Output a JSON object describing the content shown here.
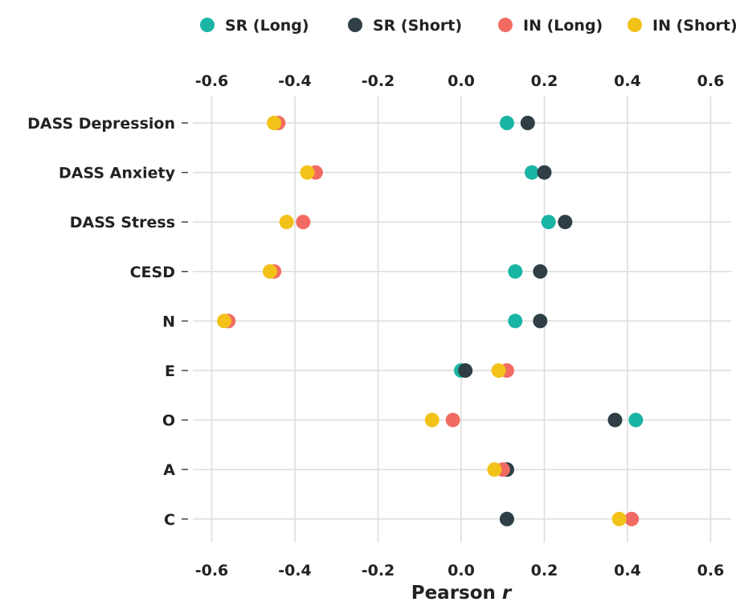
{
  "chart_data": {
    "type": "scatter",
    "xlabel": "Pearson",
    "xlabel_italic": "r",
    "xlim": [
      -0.65,
      0.65
    ],
    "xticks": [
      -0.6,
      -0.4,
      -0.2,
      0.0,
      0.2,
      0.4,
      0.6
    ],
    "xtick_labels": [
      "-0.6",
      "-0.4",
      "-0.2",
      "0.0",
      "0.2",
      "0.4",
      "0.6"
    ],
    "x_axis_labels_top_and_bottom": true,
    "grid": true,
    "legend_position": "top",
    "categories": [
      "DASS Depression",
      "DASS Anxiety",
      "DASS Stress",
      "CESD",
      "N",
      "E",
      "O",
      "A",
      "C"
    ],
    "series": [
      {
        "name": "SR (Long)",
        "color": "#1BB5A5",
        "values": [
          0.11,
          0.17,
          0.21,
          0.13,
          0.13,
          0.0,
          0.42,
          0.11,
          0.11
        ]
      },
      {
        "name": "SR (Short)",
        "color": "#2F3F45",
        "values": [
          0.16,
          0.2,
          0.25,
          0.19,
          0.19,
          0.01,
          0.37,
          0.11,
          0.11
        ]
      },
      {
        "name": "IN (Long)",
        "color": "#F26B63",
        "values": [
          -0.44,
          -0.35,
          -0.38,
          -0.45,
          -0.56,
          0.11,
          -0.02,
          0.1,
          0.41
        ]
      },
      {
        "name": "IN (Short)",
        "color": "#F2C219",
        "values": [
          -0.45,
          -0.37,
          -0.42,
          -0.46,
          -0.57,
          0.09,
          -0.07,
          0.08,
          0.38
        ]
      }
    ]
  }
}
